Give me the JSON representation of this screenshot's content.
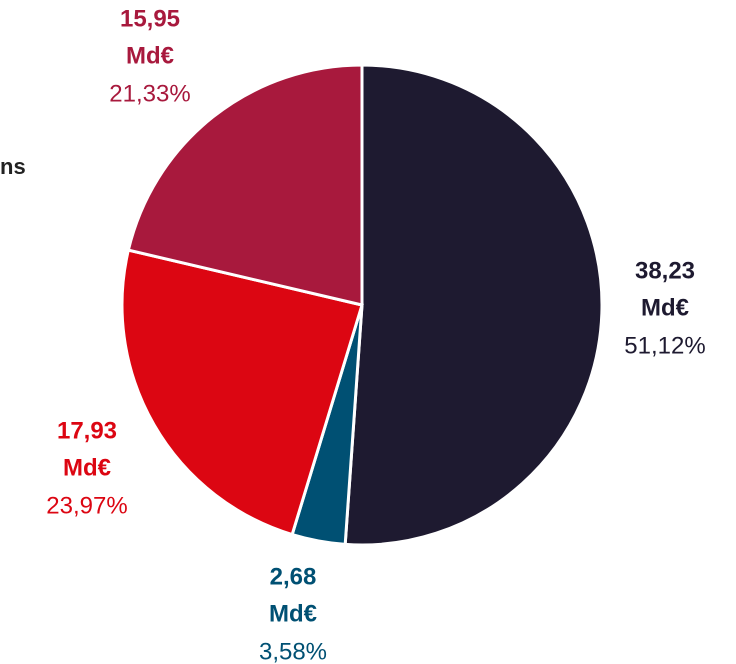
{
  "chart_data": {
    "type": "pie",
    "categories": [
      null,
      null,
      null,
      null
    ],
    "values": [
      38.23,
      2.68,
      17.93,
      15.95
    ],
    "value_labels": [
      "38,23",
      "2,68",
      "17,93",
      "15,95"
    ],
    "unit": "Md€",
    "percentages": [
      51.12,
      3.58,
      23.97,
      21.33
    ],
    "percent_labels": [
      "51,12%",
      "3,58%",
      "23,97%",
      "21,33%"
    ],
    "colors": [
      "#1e1a30",
      "#005073",
      "#dc0612",
      "#a8193d"
    ],
    "annotation": "ns"
  }
}
